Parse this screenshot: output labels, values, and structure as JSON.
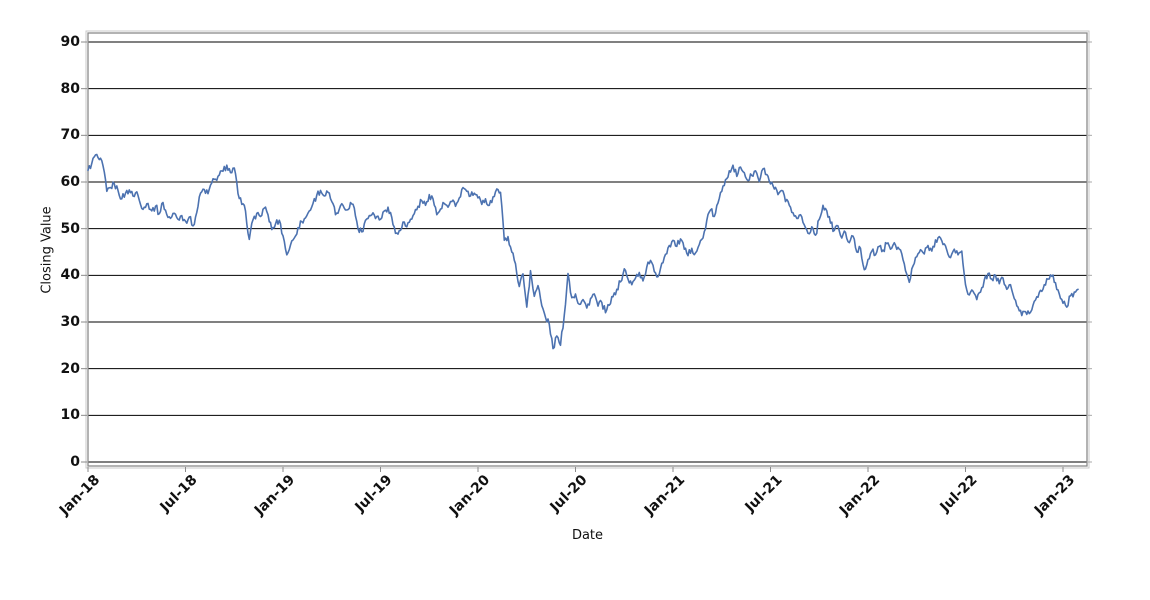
{
  "chart_data": {
    "type": "line",
    "title": "",
    "xlabel": "Date",
    "ylabel": "Closing Value",
    "x_tick_labels": [
      "Jan-18",
      "Jul-18",
      "Jan-19",
      "Jul-19",
      "Jan-20",
      "Jul-20",
      "Jan-21",
      "Jul-21",
      "Jan-22",
      "Jul-22",
      "Jan-23"
    ],
    "y_ticks": [
      0,
      10,
      20,
      30,
      40,
      50,
      60,
      70,
      80,
      90
    ],
    "ylim": [
      0,
      92
    ],
    "grid": "horizontal black gridlines every 10 units",
    "legend_position": "none",
    "plot_border_color": "#8a8a8a",
    "line_color": "#4C72B0",
    "series": [
      {
        "name": "Closing Value",
        "sampling": "weekly value estimates from Jan-2018 through mid-Jan-2023",
        "values": [
          62.5,
          64.0,
          65.8,
          64.8,
          63.5,
          58.0,
          58.8,
          59.6,
          58.2,
          56.4,
          57.6,
          58.3,
          57.0,
          57.9,
          55.2,
          54.6,
          55.4,
          53.8,
          54.8,
          53.2,
          55.6,
          53.0,
          52.2,
          53.3,
          52.0,
          52.8,
          51.6,
          52.5,
          50.6,
          53.5,
          57.6,
          58.4,
          57.5,
          59.8,
          60.6,
          61.5,
          62.3,
          63.6,
          62.0,
          63.0,
          57.5,
          55.2,
          53.8,
          47.7,
          51.9,
          53.3,
          52.6,
          54.4,
          53.0,
          49.8,
          51.0,
          51.8,
          48.5,
          44.4,
          46.5,
          48.0,
          50.2,
          51.5,
          52.3,
          53.8,
          55.4,
          57.2,
          58.2,
          57.0,
          57.8,
          55.8,
          53.0,
          54.2,
          55.0,
          54.0,
          55.6,
          54.4,
          50.0,
          49.3,
          51.8,
          52.8,
          53.4,
          52.6,
          52.0,
          53.8,
          54.6,
          52.4,
          49.0,
          49.6,
          51.4,
          50.4,
          52.0,
          53.2,
          54.8,
          56.0,
          55.0,
          57.3,
          56.4,
          53.0,
          54.2,
          55.4,
          54.6,
          55.8,
          54.8,
          56.6,
          58.8,
          58.0,
          57.0,
          57.6,
          56.6,
          55.2,
          56.4,
          55.0,
          56.8,
          58.5,
          57.8,
          47.5,
          48.3,
          45.0,
          42.5,
          37.6,
          40.3,
          33.2,
          41.0,
          35.5,
          37.8,
          33.5,
          31.0,
          29.5,
          24.3,
          27.0,
          25.0,
          31.5,
          40.4,
          35.2,
          36.0,
          33.8,
          34.8,
          33.0,
          35.0,
          36.0,
          33.4,
          34.2,
          32.0,
          33.6,
          35.4,
          37.0,
          38.6,
          41.4,
          39.2,
          38.0,
          39.4,
          40.6,
          38.8,
          41.8,
          43.2,
          40.8,
          39.7,
          42.6,
          44.5,
          46.4,
          47.5,
          46.2,
          47.8,
          45.6,
          44.2,
          45.8,
          44.8,
          46.6,
          48.0,
          51.8,
          54.0,
          52.6,
          55.5,
          58.0,
          60.5,
          62.4,
          63.6,
          61.2,
          63.2,
          62.0,
          60.3,
          61.4,
          62.4,
          60.1,
          62.8,
          61.6,
          59.6,
          58.5,
          57.3,
          58.2,
          55.8,
          55.0,
          53.4,
          52.2,
          53.0,
          50.8,
          49.0,
          50.4,
          48.6,
          52.0,
          55.0,
          53.8,
          51.2,
          49.6,
          50.6,
          48.0,
          49.2,
          47.0,
          48.4,
          45.0,
          45.8,
          41.2,
          43.4,
          45.2,
          44.4,
          46.2,
          45.4,
          46.8,
          45.6,
          47.0,
          46.0,
          44.6,
          41.0,
          38.5,
          42.0,
          44.0,
          45.5,
          44.6,
          46.4,
          45.2,
          47.6,
          48.3,
          46.6,
          45.4,
          43.8,
          45.6,
          44.4,
          45.2,
          38.0,
          35.8,
          36.6,
          34.8,
          36.4,
          39.0,
          40.4,
          39.2,
          40.0,
          38.2,
          39.4,
          37.0,
          38.0,
          35.0,
          33.2,
          31.4,
          32.2,
          31.8,
          33.6,
          35.4,
          36.8,
          38.0,
          39.2,
          39.8,
          38.4,
          36.0,
          34.0,
          33.2,
          35.6,
          36.4,
          37.0
        ]
      }
    ]
  }
}
